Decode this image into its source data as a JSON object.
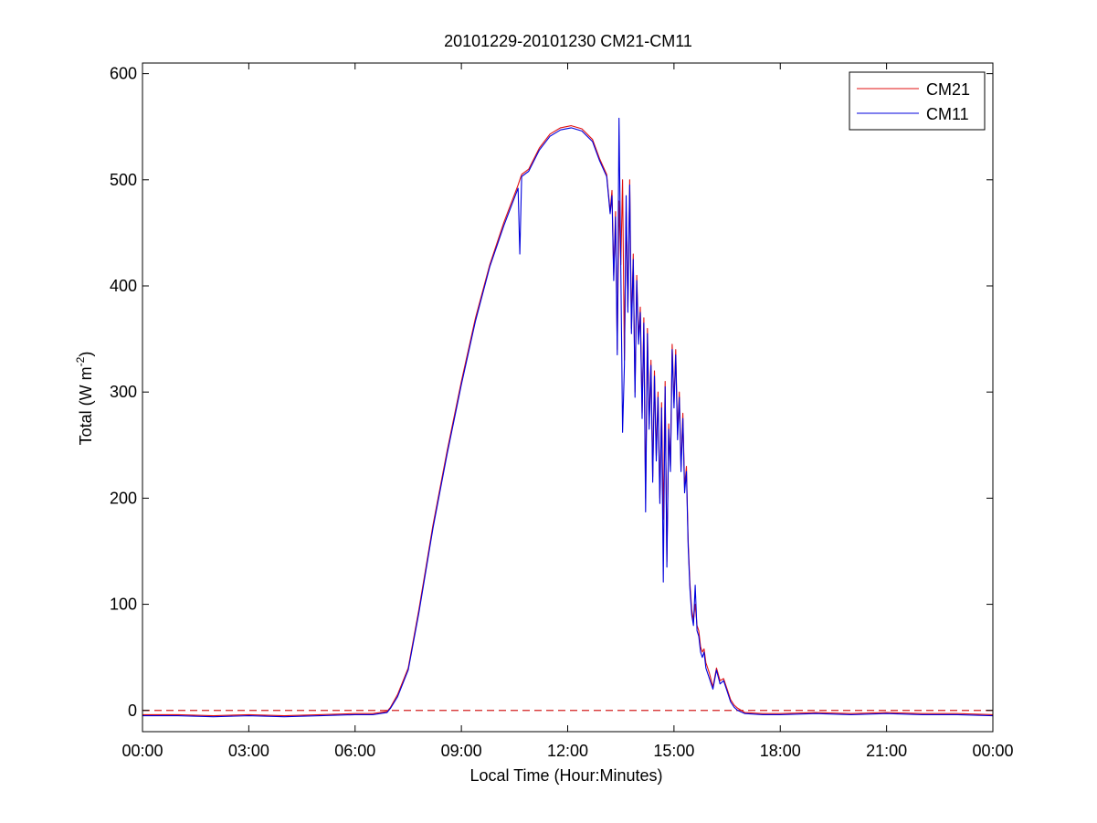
{
  "chart_data": {
    "type": "line",
    "title": "20101229-20101230 CM21-CM11",
    "xlabel": "Local Time (Hour:Minutes)",
    "ylabel_main": "Total (W m",
    "ylabel_sup": "-2",
    "ylabel_close": ")",
    "xlim": [
      0,
      24
    ],
    "ylim": [
      -20,
      610
    ],
    "xticks": [
      {
        "value": 0,
        "label": "00:00"
      },
      {
        "value": 3,
        "label": "03:00"
      },
      {
        "value": 6,
        "label": "06:00"
      },
      {
        "value": 9,
        "label": "09:00"
      },
      {
        "value": 12,
        "label": "12:00"
      },
      {
        "value": 15,
        "label": "15:00"
      },
      {
        "value": 18,
        "label": "18:00"
      },
      {
        "value": 21,
        "label": "21:00"
      },
      {
        "value": 24,
        "label": "00:00"
      }
    ],
    "yticks": [
      {
        "value": 0,
        "label": "0"
      },
      {
        "value": 100,
        "label": "100"
      },
      {
        "value": 200,
        "label": "200"
      },
      {
        "value": 300,
        "label": "300"
      },
      {
        "value": 400,
        "label": "400"
      },
      {
        "value": 500,
        "label": "500"
      },
      {
        "value": 600,
        "label": "600"
      }
    ],
    "grid": false,
    "legend_position": "top-right",
    "reference_line": {
      "y": 0,
      "color": "#d42020",
      "style": "dashed"
    },
    "series": [
      {
        "name": "CM21",
        "color": "#e01010",
        "x": [
          0,
          1,
          2,
          3,
          4,
          5,
          6,
          6.5,
          6.9,
          7.0,
          7.2,
          7.5,
          7.8,
          8.2,
          8.6,
          9.0,
          9.4,
          9.8,
          10.2,
          10.6,
          10.65,
          10.7,
          10.9,
          11.2,
          11.5,
          11.8,
          12.1,
          12.4,
          12.7,
          12.9,
          13.1,
          13.2,
          13.25,
          13.3,
          13.35,
          13.4,
          13.45,
          13.5,
          13.55,
          13.6,
          13.65,
          13.7,
          13.75,
          13.8,
          13.85,
          13.9,
          13.95,
          14.0,
          14.05,
          14.1,
          14.15,
          14.2,
          14.25,
          14.3,
          14.35,
          14.4,
          14.45,
          14.5,
          14.55,
          14.6,
          14.65,
          14.7,
          14.75,
          14.8,
          14.85,
          14.9,
          14.95,
          15.0,
          15.05,
          15.1,
          15.15,
          15.2,
          15.25,
          15.3,
          15.35,
          15.4,
          15.45,
          15.5,
          15.55,
          15.6,
          15.65,
          15.7,
          15.75,
          15.8,
          15.85,
          15.9,
          16.0,
          16.1,
          16.2,
          16.3,
          16.4,
          16.5,
          16.6,
          16.7,
          16.8,
          17.0,
          17.5,
          18,
          19,
          20,
          21,
          22,
          23,
          24
        ],
        "values": [
          -4,
          -4,
          -5,
          -4,
          -5,
          -4,
          -3,
          -3,
          -1,
          3,
          15,
          40,
          95,
          175,
          245,
          310,
          370,
          420,
          460,
          495,
          500,
          505,
          510,
          530,
          543,
          549,
          551,
          548,
          538,
          520,
          505,
          470,
          490,
          410,
          470,
          340,
          480,
          420,
          500,
          330,
          470,
          380,
          500,
          360,
          430,
          300,
          410,
          350,
          380,
          280,
          370,
          200,
          360,
          270,
          330,
          220,
          320,
          240,
          300,
          200,
          290,
          180,
          310,
          140,
          270,
          230,
          345,
          290,
          340,
          260,
          300,
          230,
          280,
          210,
          230,
          160,
          120,
          95,
          85,
          100,
          80,
          75,
          60,
          55,
          58,
          45,
          35,
          22,
          40,
          28,
          30,
          20,
          10,
          5,
          2,
          -2,
          -3,
          -3,
          -2,
          -3,
          -2,
          -3,
          -3,
          -4
        ]
      },
      {
        "name": "CM11",
        "color": "#0000dd",
        "x": [
          0,
          1,
          2,
          3,
          4,
          5,
          6,
          6.5,
          6.9,
          7.0,
          7.2,
          7.5,
          7.8,
          8.2,
          8.6,
          9.0,
          9.4,
          9.8,
          10.2,
          10.6,
          10.65,
          10.7,
          10.9,
          11.2,
          11.5,
          11.8,
          12.1,
          12.4,
          12.7,
          12.9,
          13.1,
          13.2,
          13.25,
          13.3,
          13.35,
          13.4,
          13.45,
          13.5,
          13.55,
          13.6,
          13.65,
          13.7,
          13.75,
          13.8,
          13.85,
          13.9,
          13.95,
          14.0,
          14.05,
          14.1,
          14.15,
          14.2,
          14.25,
          14.3,
          14.35,
          14.4,
          14.45,
          14.5,
          14.55,
          14.6,
          14.65,
          14.7,
          14.75,
          14.8,
          14.85,
          14.9,
          14.95,
          15.0,
          15.05,
          15.1,
          15.15,
          15.2,
          15.25,
          15.3,
          15.35,
          15.4,
          15.45,
          15.5,
          15.55,
          15.6,
          15.65,
          15.7,
          15.75,
          15.8,
          15.85,
          15.9,
          16.0,
          16.1,
          16.2,
          16.3,
          16.4,
          16.5,
          16.6,
          16.7,
          16.8,
          17.0,
          17.5,
          18,
          19,
          20,
          21,
          22,
          23,
          24
        ],
        "values": [
          -5,
          -5,
          -6,
          -5,
          -6,
          -5,
          -4,
          -4,
          -2,
          2,
          13,
          38,
          92,
          172,
          242,
          307,
          367,
          418,
          457,
          492,
          430,
          503,
          508,
          528,
          541,
          547,
          549,
          546,
          536,
          518,
          503,
          468,
          485,
          405,
          465,
          335,
          558,
          415,
          262,
          325,
          485,
          375,
          495,
          355,
          425,
          295,
          405,
          345,
          375,
          275,
          365,
          187,
          355,
          265,
          325,
          215,
          315,
          235,
          295,
          195,
          285,
          121,
          305,
          135,
          265,
          225,
          340,
          285,
          335,
          255,
          295,
          225,
          275,
          205,
          225,
          155,
          115,
          90,
          80,
          118,
          75,
          70,
          55,
          50,
          55,
          40,
          30,
          20,
          38,
          25,
          28,
          18,
          8,
          3,
          0,
          -3,
          -4,
          -4,
          -3,
          -4,
          -3,
          -4,
          -4,
          -5
        ]
      }
    ]
  }
}
